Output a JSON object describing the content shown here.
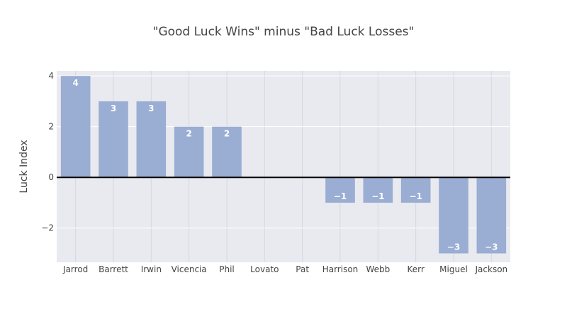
{
  "chart_data": {
    "type": "bar",
    "title": "\"Good Luck Wins\" minus \"Bad Luck Losses\"",
    "xlabel": "",
    "ylabel": "Luck Index",
    "categories": [
      "Jarrod",
      "Barrett",
      "Irwin",
      "Vicencia",
      "Phil",
      "Lovato",
      "Pat",
      "Harrison",
      "Webb",
      "Kerr",
      "Miguel",
      "Jackson"
    ],
    "values": [
      4,
      3,
      3,
      2,
      2,
      0,
      0,
      -1,
      -1,
      -1,
      -3,
      -3
    ],
    "value_labels": [
      "4",
      "3",
      "3",
      "2",
      "2",
      "",
      "",
      "−1",
      "−1",
      "−1",
      "−3",
      "−3"
    ],
    "ylim": [
      -3.35,
      4.2
    ],
    "yticks": [
      -2,
      0,
      2,
      4
    ],
    "ytick_labels": [
      "−2",
      "0",
      "2",
      "4"
    ],
    "grid": true,
    "colors": {
      "bar": "#9aadd3",
      "plot_bg": "#e9e9f0",
      "grid": "#ffffff",
      "zero_line": "#000000",
      "text": "#444444"
    }
  }
}
